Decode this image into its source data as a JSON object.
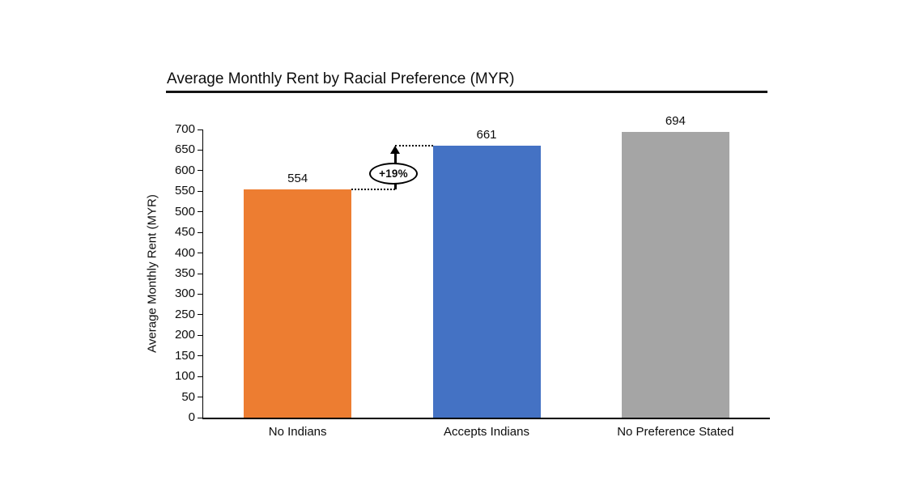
{
  "chart_data": {
    "type": "bar",
    "title": "Average Monthly Rent by Racial Preference (MYR)",
    "xlabel": "",
    "ylabel": "Average Monthly Rent (MYR)",
    "categories": [
      "No Indians",
      "Accepts Indians",
      "No Preference Stated"
    ],
    "values": [
      554,
      661,
      694
    ],
    "bar_colors": [
      "#ED7D31",
      "#4472C4",
      "#A5A5A5"
    ],
    "ylim": [
      0,
      700
    ],
    "ytick_step": 50,
    "yticks": [
      0,
      50,
      100,
      150,
      200,
      250,
      300,
      350,
      400,
      450,
      500,
      550,
      600,
      650,
      700
    ],
    "grid": false,
    "legend": "none",
    "annotation": {
      "label": "+19%",
      "from_category": "No Indians",
      "from_value": 554,
      "to_category": "Accepts Indians",
      "to_value": 661
    }
  }
}
